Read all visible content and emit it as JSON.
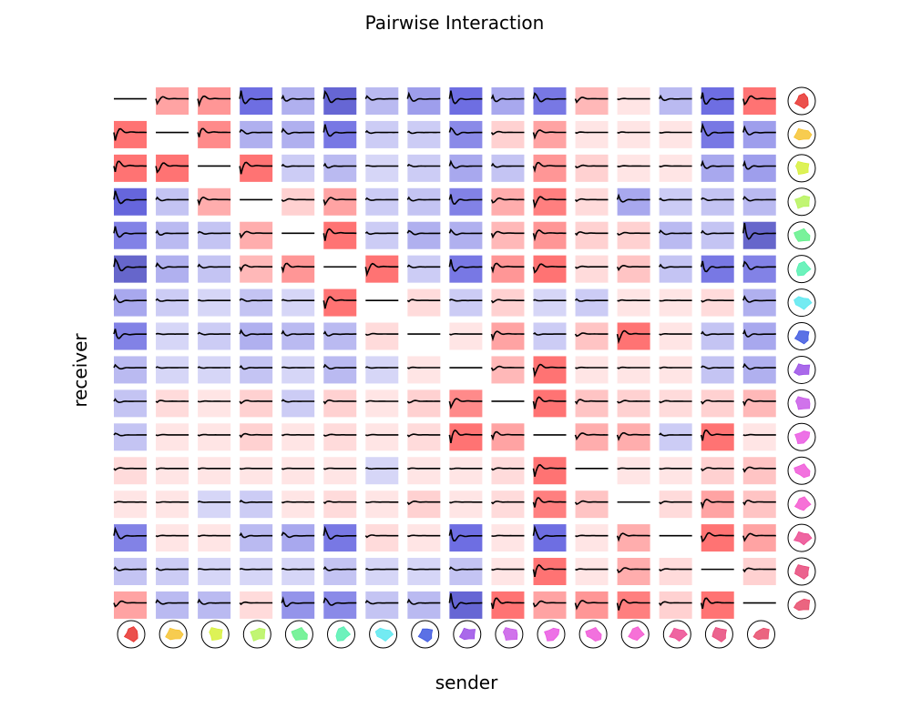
{
  "chart_data": {
    "type": "heatmap",
    "title": "Pairwise Interaction",
    "xlabel": "sender",
    "ylabel": "receiver",
    "n": 16,
    "color_scale": {
      "negative": "#0000cc",
      "positive": "#ff0000",
      "dark_negative": "#000066",
      "trace": "#000000"
    },
    "cell_colormap_note": "values in [-1,1]; negative = blue, positive = red, extreme negative darkens to navy",
    "neuron_colors": [
      "#e8312d",
      "#f6c331",
      "#d7f03a",
      "#b6f35b",
      "#62f08a",
      "#53f0b0",
      "#5be8f0",
      "#3e58e0",
      "#9a4fe6",
      "#c85ae8",
      "#ea58e2",
      "#f058d8",
      "#f558d0",
      "#ec4a90",
      "#e8487a",
      "#e84a6a"
    ],
    "interaction_values": [
      [
        0.0,
        0.35,
        0.4,
        -0.6,
        -0.25,
        -0.7,
        -0.2,
        -0.35,
        -0.6,
        -0.3,
        -0.55,
        0.25,
        0.05,
        -0.2,
        -0.6,
        0.55
      ],
      [
        0.55,
        0.0,
        0.45,
        -0.25,
        -0.25,
        -0.55,
        -0.1,
        -0.1,
        -0.45,
        0.15,
        0.35,
        0.05,
        0.05,
        0.05,
        -0.55,
        -0.35
      ],
      [
        0.55,
        0.6,
        0.0,
        0.55,
        -0.1,
        -0.2,
        -0.05,
        -0.1,
        -0.3,
        -0.15,
        0.4,
        0.15,
        0.05,
        0.05,
        -0.3,
        -0.35
      ],
      [
        -0.65,
        -0.15,
        0.3,
        0.0,
        0.15,
        0.35,
        -0.1,
        -0.15,
        -0.5,
        0.3,
        0.5,
        0.1,
        -0.3,
        -0.1,
        -0.15,
        -0.2
      ],
      [
        -0.5,
        -0.2,
        -0.15,
        0.3,
        0.0,
        0.55,
        -0.1,
        -0.25,
        -0.25,
        0.25,
        0.4,
        0.15,
        0.15,
        -0.2,
        -0.15,
        -0.75
      ],
      [
        -0.75,
        -0.25,
        -0.15,
        0.25,
        0.4,
        0.0,
        0.55,
        -0.1,
        -0.55,
        0.4,
        0.55,
        0.1,
        0.2,
        -0.15,
        -0.55,
        -0.5
      ],
      [
        -0.3,
        -0.1,
        -0.05,
        -0.15,
        -0.05,
        0.55,
        0.0,
        0.1,
        -0.1,
        0.15,
        -0.05,
        -0.1,
        0.05,
        0.05,
        0.1,
        -0.25
      ],
      [
        -0.5,
        -0.05,
        -0.1,
        -0.25,
        -0.2,
        -0.2,
        0.1,
        0.0,
        0.05,
        0.35,
        -0.1,
        0.2,
        0.55,
        0.05,
        -0.15,
        -0.3
      ],
      [
        -0.2,
        -0.05,
        -0.05,
        -0.15,
        -0.05,
        -0.2,
        -0.05,
        0.05,
        0.0,
        0.25,
        0.55,
        0.05,
        0.05,
        0.05,
        -0.15,
        -0.25
      ],
      [
        -0.15,
        0.1,
        0.05,
        0.15,
        -0.1,
        0.15,
        0.05,
        0.15,
        0.45,
        0.0,
        0.55,
        0.2,
        0.15,
        0.1,
        0.15,
        0.25
      ],
      [
        -0.15,
        0.05,
        0.05,
        0.15,
        0.05,
        0.1,
        0.05,
        0.1,
        0.6,
        0.35,
        0.0,
        0.3,
        0.3,
        -0.1,
        0.55,
        0.05
      ],
      [
        0.1,
        0.05,
        0.05,
        0.05,
        0.05,
        0.05,
        -0.05,
        0.05,
        0.05,
        0.1,
        0.55,
        0.0,
        0.05,
        0.05,
        0.15,
        0.2
      ],
      [
        0.05,
        0.05,
        -0.05,
        -0.1,
        0.05,
        0.1,
        0.05,
        0.15,
        0.05,
        0.1,
        0.5,
        0.2,
        0.0,
        0.1,
        0.35,
        0.2
      ],
      [
        -0.5,
        0.05,
        0.05,
        -0.2,
        -0.3,
        -0.55,
        0.1,
        0.05,
        -0.6,
        0.05,
        -0.6,
        0.05,
        0.3,
        0.0,
        0.55,
        0.35
      ],
      [
        -0.15,
        -0.1,
        -0.05,
        -0.05,
        -0.05,
        -0.15,
        -0.05,
        -0.05,
        -0.15,
        0.05,
        0.55,
        0.05,
        0.3,
        0.1,
        0.0,
        0.15
      ],
      [
        0.35,
        -0.2,
        -0.2,
        0.1,
        -0.4,
        -0.45,
        -0.15,
        -0.2,
        -0.7,
        0.55,
        0.35,
        0.4,
        0.5,
        0.15,
        0.55,
        0.0
      ]
    ]
  }
}
